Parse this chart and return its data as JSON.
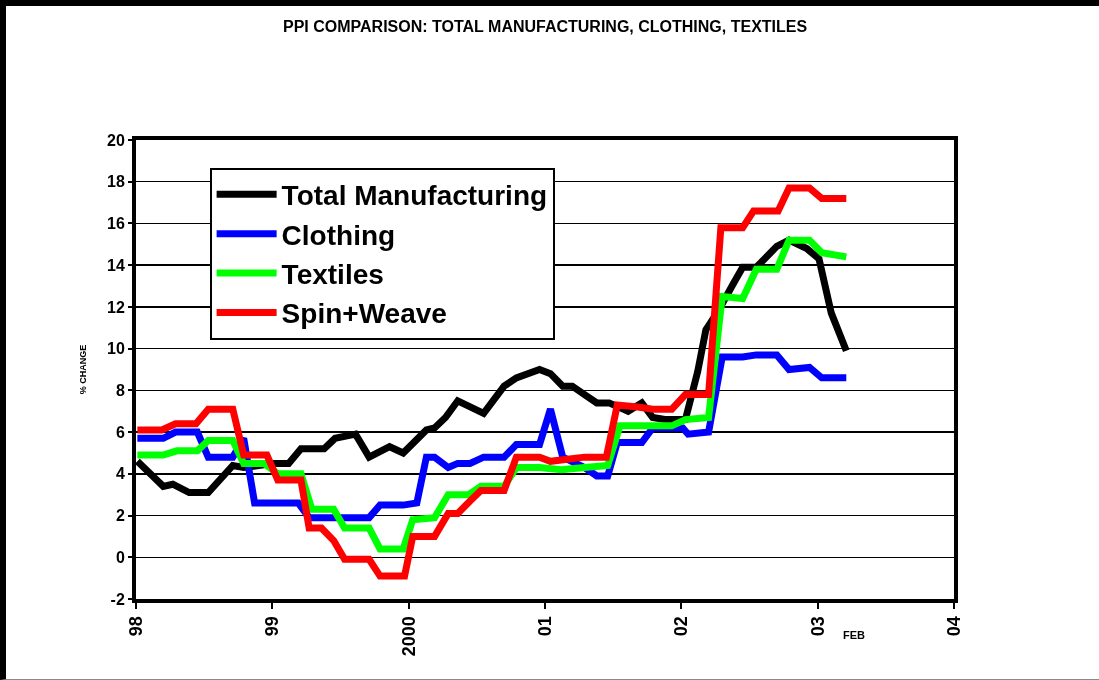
{
  "chart_data": {
    "type": "line",
    "title": "PPI COMPARISON: TOTAL MANUFACTURING, CLOTHING, TEXTILES",
    "ylabel": "% CHANGE",
    "xlim": [
      1998,
      2004
    ],
    "xticks": [
      {
        "value": 1998,
        "label": "98"
      },
      {
        "value": 1999,
        "label": "99"
      },
      {
        "value": 2000,
        "label": "2000"
      },
      {
        "value": 2001,
        "label": "01"
      },
      {
        "value": 2002,
        "label": "02"
      },
      {
        "value": 2003,
        "label": "03"
      },
      {
        "value": 2004,
        "label": "04"
      }
    ],
    "ylim": [
      -2,
      20
    ],
    "yticks": [
      -2,
      0,
      2,
      4,
      6,
      8,
      10,
      12,
      14,
      16,
      18,
      20
    ],
    "grid": "y",
    "legend": "top left",
    "marker": "none",
    "line_style": "solid",
    "annotations": [
      "FEB"
    ],
    "series": [
      {
        "name": "Total Manufacturing",
        "color": "#000000",
        "x": [
          1998.01,
          1998.2,
          1998.27,
          1998.39,
          1998.53,
          1998.71,
          1998.79,
          1999.01,
          1999.12,
          1999.21,
          1999.38,
          1999.46,
          1999.61,
          1999.71,
          1999.86,
          1999.96,
          2000.13,
          2000.19,
          2000.27,
          2000.36,
          2000.55,
          2000.7,
          2000.79,
          2000.96,
          2001.04,
          2001.13,
          2001.2,
          2001.29,
          2001.38,
          2001.47,
          2001.61,
          2001.71,
          2001.79,
          2001.88,
          2002.03,
          2002.12,
          2002.18,
          2002.27,
          2002.38,
          2002.45,
          2002.55,
          2002.7,
          2002.79,
          2002.92,
          2003.01,
          2003.1,
          2003.21
        ],
        "values": [
          4.6,
          3.4,
          3.5,
          3.1,
          3.1,
          4.4,
          4.3,
          4.5,
          4.5,
          5.2,
          5.2,
          5.7,
          5.9,
          4.8,
          5.3,
          5.0,
          6.1,
          6.2,
          6.7,
          7.5,
          6.9,
          8.2,
          8.6,
          9.0,
          8.8,
          8.2,
          8.2,
          7.8,
          7.4,
          7.4,
          7.0,
          7.4,
          6.7,
          6.6,
          6.6,
          8.9,
          10.9,
          11.8,
          13.1,
          13.9,
          13.9,
          14.9,
          15.2,
          14.8,
          14.3,
          11.7,
          9.9
        ]
      },
      {
        "name": "Clothing",
        "color": "#0000ff",
        "x": [
          1998.01,
          1998.2,
          1998.29,
          1998.45,
          1998.53,
          1998.71,
          1998.79,
          1998.87,
          1999.19,
          1999.27,
          1999.71,
          1999.79,
          1999.96,
          2000.06,
          2000.13,
          2000.19,
          2000.29,
          2000.36,
          2000.45,
          2000.55,
          2000.7,
          2000.79,
          2000.96,
          2001.04,
          2001.13,
          2001.29,
          2001.38,
          2001.46,
          2001.53,
          2001.71,
          2001.79,
          2002.01,
          2002.05,
          2002.2,
          2002.3,
          2002.45,
          2002.55,
          2002.7,
          2002.79,
          2002.94,
          2003.03,
          2003.21
        ],
        "values": [
          5.7,
          5.7,
          6.0,
          6.0,
          4.8,
          4.8,
          5.7,
          2.6,
          2.6,
          1.9,
          1.9,
          2.5,
          2.5,
          2.6,
          4.8,
          4.8,
          4.3,
          4.5,
          4.5,
          4.8,
          4.8,
          5.4,
          5.4,
          7.1,
          4.8,
          4.3,
          3.9,
          3.9,
          5.5,
          5.5,
          6.2,
          6.2,
          5.9,
          6.0,
          9.6,
          9.6,
          9.7,
          9.7,
          9.0,
          9.1,
          8.6,
          8.6
        ]
      },
      {
        "name": "Textiles",
        "color": "#00ff00",
        "x": [
          1998.01,
          1998.2,
          1998.3,
          1998.45,
          1998.53,
          1998.71,
          1998.79,
          1998.94,
          1999.04,
          1999.21,
          1999.29,
          1999.45,
          1999.53,
          1999.71,
          1999.79,
          1999.96,
          2000.03,
          2000.19,
          2000.29,
          2000.44,
          2000.53,
          2000.7,
          2000.79,
          2000.96,
          2001.12,
          2001.29,
          2001.46,
          2001.55,
          2001.71,
          2001.93,
          2002.03,
          2002.2,
          2002.3,
          2002.45,
          2002.55,
          2002.7,
          2002.79,
          2002.94,
          2003.03,
          2003.21
        ],
        "values": [
          4.9,
          4.9,
          5.1,
          5.1,
          5.6,
          5.6,
          4.5,
          4.5,
          4.0,
          4.0,
          2.3,
          2.3,
          1.4,
          1.4,
          0.4,
          0.4,
          1.8,
          1.9,
          3.0,
          3.0,
          3.4,
          3.4,
          4.3,
          4.3,
          4.2,
          4.3,
          4.4,
          6.3,
          6.3,
          6.3,
          6.6,
          6.7,
          12.5,
          12.4,
          13.8,
          13.8,
          15.2,
          15.2,
          14.6,
          14.4
        ]
      },
      {
        "name": "Spin+Weave",
        "color": "#ff0000",
        "x": [
          1998.01,
          1998.19,
          1998.29,
          1998.44,
          1998.53,
          1998.71,
          1998.79,
          1998.96,
          1999.04,
          1999.21,
          1999.27,
          1999.36,
          1999.45,
          1999.53,
          1999.71,
          1999.79,
          1999.97,
          2000.03,
          2000.19,
          2000.29,
          2000.36,
          2000.45,
          2000.53,
          2000.7,
          2000.79,
          2000.96,
          2001.04,
          2001.29,
          2001.45,
          2001.53,
          2001.68,
          2001.79,
          2001.93,
          2002.03,
          2002.2,
          2002.29,
          2002.45,
          2002.53,
          2002.71,
          2002.79,
          2002.94,
          2003.03,
          2003.21
        ],
        "values": [
          6.1,
          6.1,
          6.4,
          6.4,
          7.1,
          7.1,
          4.9,
          4.9,
          3.7,
          3.7,
          1.4,
          1.4,
          0.8,
          -0.1,
          -0.1,
          -0.9,
          -0.9,
          1.0,
          1.0,
          2.1,
          2.1,
          2.7,
          3.2,
          3.2,
          4.8,
          4.8,
          4.6,
          4.8,
          4.8,
          7.3,
          7.2,
          7.1,
          7.1,
          7.8,
          7.8,
          15.8,
          15.8,
          16.6,
          16.6,
          17.7,
          17.7,
          17.2,
          17.2
        ]
      }
    ]
  }
}
